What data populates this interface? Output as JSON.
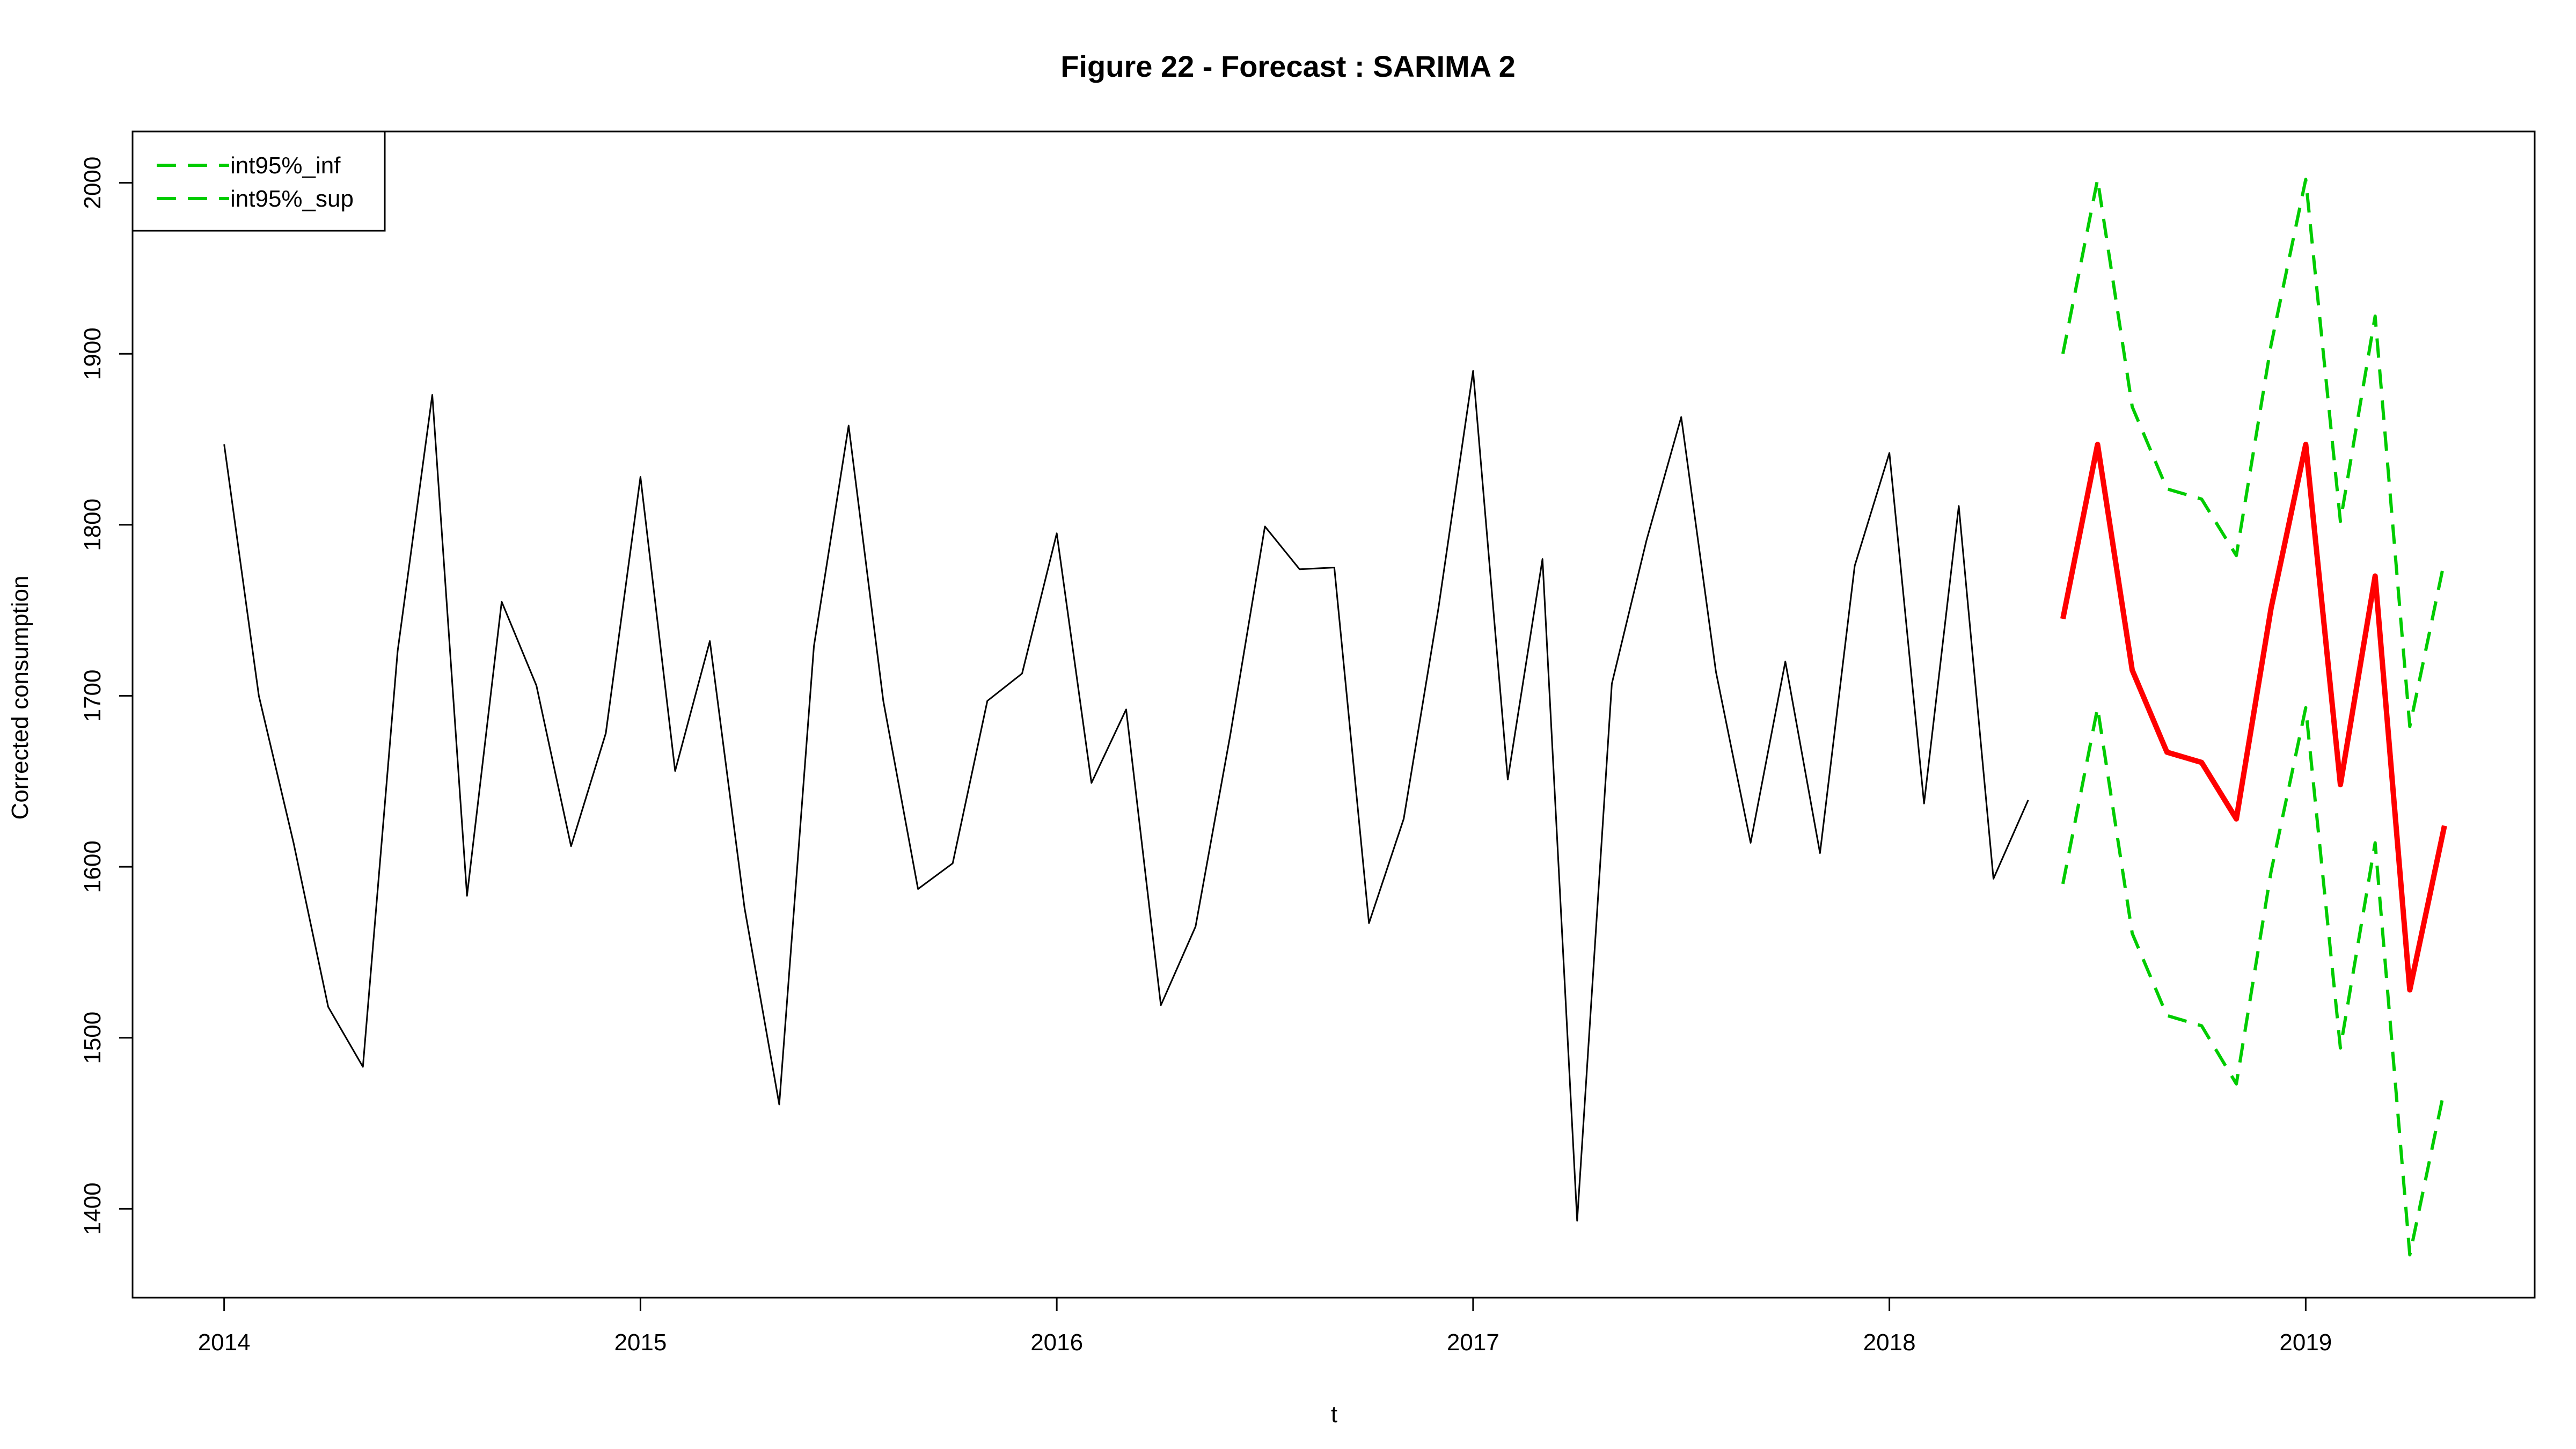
{
  "chart_data": {
    "type": "line",
    "title": "Figure 22 - Forecast : SARIMA 2",
    "xlabel": "t",
    "ylabel": "Corrected consumption",
    "xlim": [
      2013.78,
      2019.55
    ],
    "ylim": [
      1348,
      2030
    ],
    "x_ticks": [
      2014,
      2015,
      2016,
      2017,
      2018,
      2019
    ],
    "y_ticks": [
      1400,
      1500,
      1600,
      1700,
      1800,
      1900,
      2000
    ],
    "grid": false,
    "legend": {
      "position": "top-left",
      "entries": [
        {
          "name": "int95%_inf",
          "color": "#00cc00",
          "style": "dashed"
        },
        {
          "name": "int95%_sup",
          "color": "#00cc00",
          "style": "dashed"
        }
      ]
    },
    "series": [
      {
        "color": "#000000",
        "style": "solid",
        "start": 2014.0,
        "step": 0.083333,
        "values": [
          1847,
          1700,
          1614,
          1518,
          1483,
          1726,
          1876,
          1583,
          1755,
          1706,
          1612,
          1678,
          1828,
          1656,
          1732,
          1576,
          1461,
          1729,
          1858,
          1697,
          1587,
          1602,
          1697,
          1713,
          1795,
          1649,
          1692,
          1519,
          1565,
          1677,
          1799,
          1774,
          1775,
          1567,
          1628,
          1751,
          1890,
          1651,
          1780,
          1393,
          1707,
          1791,
          1863,
          1714,
          1614,
          1720,
          1608,
          1776,
          1842,
          1637,
          1811,
          1593,
          1639
        ]
      },
      {
        "color": "#ff0000",
        "style": "solid-thick",
        "start": 2018.4167,
        "step": 0.083333,
        "values": [
          1745,
          1847,
          1715,
          1667,
          1661,
          1628,
          1751,
          1847,
          1648,
          1770,
          1528,
          1624
        ]
      },
      {
        "name": "int95%_inf",
        "color": "#00cc00",
        "style": "dashed",
        "start": 2018.4167,
        "step": 0.083333,
        "values": [
          1590,
          1693,
          1561,
          1513,
          1507,
          1473,
          1597,
          1693,
          1494,
          1614,
          1373,
          1470
        ]
      },
      {
        "name": "int95%_sup",
        "color": "#00cc00",
        "style": "dashed",
        "start": 2018.4167,
        "step": 0.083333,
        "values": [
          1900,
          2002,
          1869,
          1821,
          1815,
          1782,
          1905,
          2002,
          1802,
          1922,
          1682,
          1779
        ]
      }
    ]
  }
}
